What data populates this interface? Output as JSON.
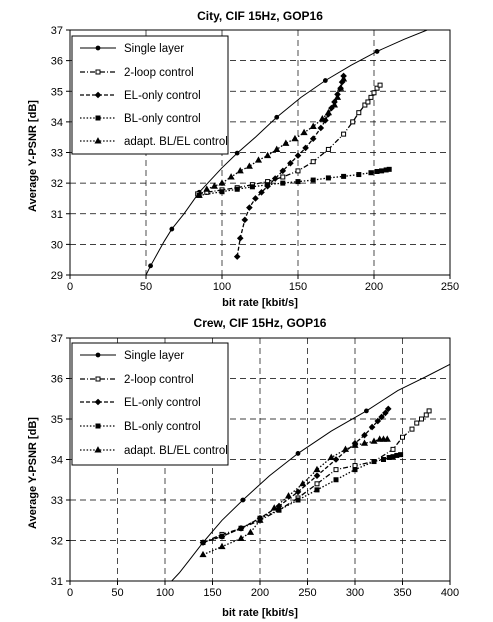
{
  "chart_data": [
    {
      "type": "line",
      "title": "City, CIF 15Hz, GOP16",
      "xlabel": "bit rate [kbit/s]",
      "ylabel": "Average Y-PSNR [dB]",
      "xlim": [
        0,
        250
      ],
      "ylim": [
        29,
        37
      ],
      "xticks": [
        "0",
        "50",
        "100",
        "150",
        "200",
        "250"
      ],
      "yticks": [
        "29",
        "30",
        "31",
        "32",
        "33",
        "34",
        "35",
        "36",
        "37"
      ],
      "grid": true,
      "legend_position": "top-left",
      "series": [
        {
          "name": "Single layer",
          "style": "solid",
          "marker": "circle",
          "x": [
            50,
            53,
            62,
            67,
            75,
            85,
            100,
            110,
            122,
            136,
            152,
            168,
            185,
            202,
            220,
            235
          ],
          "y": [
            29.0,
            29.3,
            30.1,
            30.5,
            31.0,
            31.7,
            32.5,
            32.98,
            33.5,
            34.15,
            34.8,
            35.35,
            35.85,
            36.3,
            36.7,
            37.0
          ],
          "markers_at": [
            53,
            67,
            85,
            110,
            136,
            168,
            202
          ]
        },
        {
          "name": "2-loop control",
          "style": "dashdot",
          "marker": "open-square",
          "x": [
            84,
            90,
            100,
            110,
            120,
            130,
            140,
            150,
            160,
            170,
            180,
            186,
            190,
            194,
            196,
            198,
            200,
            202,
            204
          ],
          "y": [
            31.65,
            31.7,
            31.78,
            31.85,
            31.95,
            32.05,
            32.2,
            32.4,
            32.7,
            33.1,
            33.6,
            34.0,
            34.3,
            34.55,
            34.65,
            34.8,
            34.95,
            35.1,
            35.2
          ]
        },
        {
          "name": "EL-only control",
          "style": "dashed",
          "marker": "diamond",
          "x": [
            110,
            112,
            115,
            118,
            122,
            126,
            130,
            135,
            140,
            145,
            150,
            155,
            160,
            165,
            168,
            170,
            172,
            174,
            176,
            178,
            179,
            180
          ],
          "y": [
            29.6,
            30.2,
            30.8,
            31.2,
            31.5,
            31.7,
            31.9,
            32.15,
            32.4,
            32.65,
            32.9,
            33.15,
            33.45,
            33.8,
            34.05,
            34.25,
            34.45,
            34.65,
            34.9,
            35.1,
            35.3,
            35.5
          ]
        },
        {
          "name": "BL-only control",
          "style": "dotted",
          "marker": "square",
          "x": [
            85,
            100,
            110,
            120,
            130,
            140,
            150,
            160,
            170,
            180,
            190,
            198,
            202,
            205,
            208,
            210
          ],
          "y": [
            31.6,
            31.72,
            31.8,
            31.88,
            31.95,
            32.0,
            32.05,
            32.1,
            32.17,
            32.22,
            32.28,
            32.34,
            32.38,
            32.4,
            32.43,
            32.45
          ]
        },
        {
          "name": "adapt. BL/EL control",
          "style": "dotted",
          "marker": "triangle",
          "x": [
            85,
            90,
            95,
            100,
            106,
            112,
            118,
            124,
            130,
            136,
            142,
            148,
            154,
            160,
            166,
            170,
            174,
            176,
            178,
            180
          ],
          "y": [
            31.6,
            31.8,
            31.9,
            32.0,
            32.2,
            32.4,
            32.55,
            32.75,
            32.9,
            33.1,
            33.3,
            33.45,
            33.65,
            33.85,
            34.1,
            34.3,
            34.55,
            34.8,
            35.1,
            35.4
          ]
        }
      ]
    },
    {
      "type": "line",
      "title": "Crew, CIF 15Hz, GOP16",
      "xlabel": "bit rate [kbit/s]",
      "ylabel": "Average Y-PSNR [dB]",
      "xlim": [
        0,
        400
      ],
      "ylim": [
        31,
        37
      ],
      "xticks": [
        "0",
        "50",
        "100",
        "150",
        "200",
        "250",
        "300",
        "350",
        "400"
      ],
      "yticks": [
        "31",
        "32",
        "33",
        "34",
        "35",
        "36",
        "37"
      ],
      "grid": true,
      "legend_position": "top-left",
      "series": [
        {
          "name": "Single layer",
          "style": "solid",
          "marker": "circle",
          "x": [
            105,
            115,
            125,
            140,
            160,
            182,
            210,
            240,
            275,
            312,
            345,
            375,
            400
          ],
          "y": [
            30.95,
            31.2,
            31.5,
            31.95,
            32.5,
            33.0,
            33.6,
            34.15,
            34.7,
            35.2,
            35.7,
            36.05,
            36.35
          ],
          "markers_at": [
            140,
            182,
            240,
            312
          ]
        },
        {
          "name": "2-loop control",
          "style": "dashdot",
          "marker": "open-square",
          "x": [
            140,
            160,
            180,
            200,
            220,
            240,
            260,
            280,
            300,
            320,
            340,
            350,
            360,
            365,
            370,
            375,
            378
          ],
          "y": [
            31.95,
            32.15,
            32.3,
            32.5,
            32.75,
            33.05,
            33.4,
            33.75,
            33.85,
            33.95,
            34.25,
            34.55,
            34.75,
            34.9,
            35.0,
            35.1,
            35.2
          ]
        },
        {
          "name": "EL-only control",
          "style": "dashed",
          "marker": "diamond",
          "x": [
            140,
            160,
            180,
            200,
            220,
            240,
            260,
            280,
            300,
            310,
            318,
            324,
            328,
            332,
            335
          ],
          "y": [
            31.95,
            32.1,
            32.3,
            32.55,
            32.85,
            33.2,
            33.6,
            34.0,
            34.4,
            34.6,
            34.8,
            34.95,
            35.05,
            35.15,
            35.25
          ]
        },
        {
          "name": "BL-only control",
          "style": "dotted",
          "marker": "square",
          "x": [
            140,
            160,
            180,
            200,
            220,
            240,
            260,
            280,
            300,
            320,
            330,
            336,
            340,
            344,
            348
          ],
          "y": [
            31.95,
            32.1,
            32.3,
            32.55,
            32.75,
            33.0,
            33.25,
            33.5,
            33.75,
            33.95,
            34.0,
            34.05,
            34.07,
            34.1,
            34.12
          ]
        },
        {
          "name": "adapt. BL/EL control",
          "style": "dotted",
          "marker": "triangle",
          "x": [
            140,
            160,
            180,
            190,
            200,
            215,
            230,
            245,
            260,
            275,
            290,
            300,
            310,
            320,
            326,
            330,
            334
          ],
          "y": [
            31.65,
            31.85,
            32.05,
            32.2,
            32.5,
            32.8,
            33.1,
            33.4,
            33.75,
            34.05,
            34.25,
            34.35,
            34.4,
            34.45,
            34.5,
            34.5,
            34.5
          ]
        }
      ]
    }
  ]
}
